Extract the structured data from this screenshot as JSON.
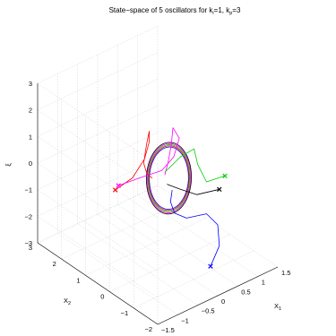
{
  "chart_data": {
    "type": "line3d",
    "title": {
      "prefix": "State−space of 5 oscillators for k",
      "sub1": "i",
      "middle": "=1, k",
      "sub2": "p",
      "suffix": "=3"
    },
    "axes": {
      "x1": {
        "label": "X",
        "label_sub": "1",
        "range": [
          -1.5,
          1.5
        ],
        "ticks": [
          "−1.5",
          "−1",
          "−0.5",
          "0",
          "0.5",
          "1",
          "1.5"
        ]
      },
      "x2": {
        "label": "X",
        "label_sub": "2",
        "range": [
          -2,
          3
        ],
        "ticks": [
          "−2",
          "−1",
          "0",
          "1",
          "2",
          "3"
        ]
      },
      "xi": {
        "label": "ξ",
        "range": [
          -3,
          3
        ],
        "ticks": [
          "−3",
          "−2",
          "−1",
          "0",
          "1",
          "2",
          "3"
        ]
      }
    },
    "grid": true,
    "series": [
      {
        "color": "#ff0000",
        "marker": "x",
        "start": [
          -1.0,
          0.6,
          0.1
        ],
        "path": [
          [
            -0.6,
            0.55,
            0.3
          ],
          [
            -0.3,
            0.55,
            0.8
          ],
          [
            -0.15,
            0.6,
            1.3
          ],
          [
            -0.15,
            0.6,
            1.7
          ],
          [
            -0.25,
            0.55,
            1.3
          ],
          [
            -0.35,
            0.5,
            0.7
          ],
          [
            -0.3,
            0.45,
            0.3
          ],
          [
            -0.2,
            0.4,
            0.1
          ]
        ]
      },
      {
        "color": "#ff00ff",
        "marker": "x",
        "start": [
          -0.8,
          0.8,
          0.0
        ],
        "path": [
          [
            -0.3,
            0.6,
            0.1
          ],
          [
            0.1,
            0.5,
            0.1
          ],
          [
            0.4,
            0.5,
            0.4
          ],
          [
            0.6,
            0.6,
            0.9
          ],
          [
            0.5,
            0.7,
            1.3
          ],
          [
            0.4,
            0.6,
            0.8
          ],
          [
            0.2,
            0.4,
            0.4
          ],
          [
            0.0,
            0.2,
            0.2
          ]
        ]
      },
      {
        "color": "#00cc00",
        "marker": "x",
        "start": [
          1.2,
          -0.3,
          -0.4
        ],
        "path": [
          [
            0.8,
            -0.2,
            -0.4
          ],
          [
            0.7,
            0.0,
            0.2
          ],
          [
            0.7,
            0.15,
            0.7
          ],
          [
            0.4,
            0.2,
            0.6
          ],
          [
            0.0,
            0.2,
            0.3
          ]
        ]
      },
      {
        "color": "#000000",
        "marker": "x",
        "start": [
          1.0,
          -0.4,
          -0.7
        ],
        "path": [
          [
            0.5,
            -0.3,
            -0.6
          ],
          [
            0.2,
            -0.1,
            -0.3
          ],
          [
            0.0,
            0.1,
            -0.1
          ]
        ]
      },
      {
        "color": "#0000ff",
        "marker": "x",
        "start": [
          0.3,
          -1.2,
          -2.6
        ],
        "path": [
          [
            0.7,
            -0.9,
            -2.3
          ],
          [
            0.9,
            -0.5,
            -1.9
          ],
          [
            0.8,
            -0.2,
            -1.6
          ],
          [
            0.3,
            -0.2,
            -1.4
          ],
          [
            0.0,
            -0.2,
            -1.0
          ],
          [
            -0.1,
            -0.2,
            -0.5
          ],
          [
            0.0,
            -0.1,
            -0.2
          ]
        ]
      }
    ],
    "limit_cycle": {
      "center": [
        0.1,
        0.2,
        0.0
      ],
      "a": 0.55,
      "b": 0.3,
      "c": 1.0,
      "colors": [
        "#0000ff",
        "#ff0000",
        "#00cc00",
        "#ff00ff",
        "#000000"
      ]
    }
  }
}
